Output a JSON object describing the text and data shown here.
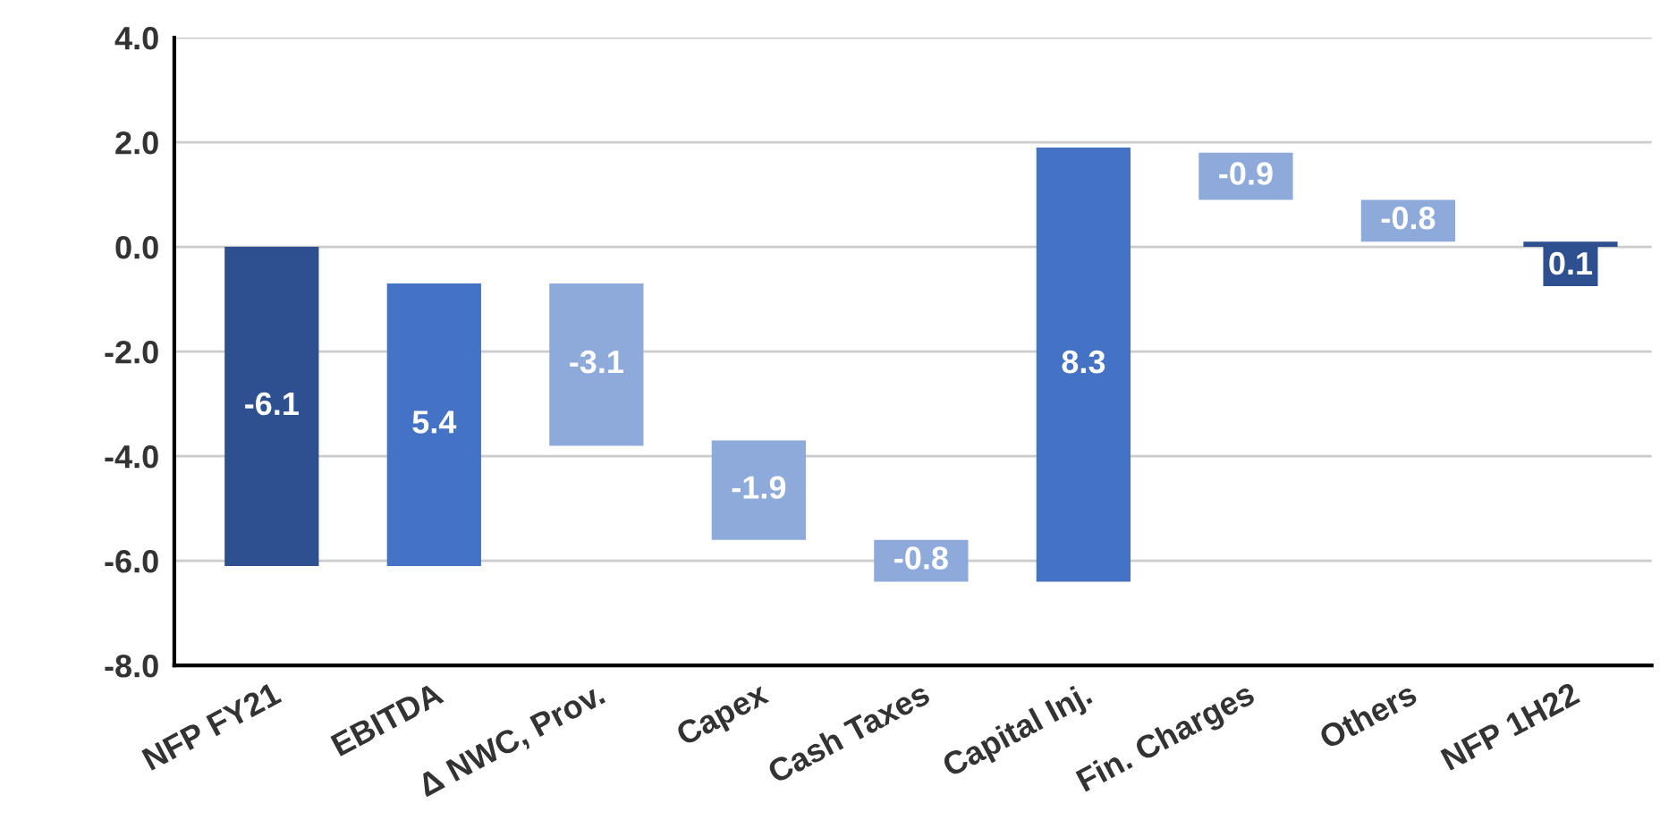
{
  "chart_data": {
    "type": "bar",
    "categories": [
      "NFP FY21",
      "EBITDA",
      "Δ NWC, Prov.",
      "Capex",
      "Cash Taxes",
      "Capital Inj.",
      "Fin. Charges",
      "Others",
      "NFP 1H22"
    ],
    "values": [
      -6.1,
      5.4,
      -3.1,
      -1.9,
      -0.8,
      8.3,
      -0.9,
      -0.8,
      0.1
    ],
    "base": [
      0,
      -6.1,
      -0.7,
      -3.7,
      -5.6,
      -6.4,
      1.8,
      0.9,
      0
    ],
    "colors": [
      "#2e5090",
      "#4472c4",
      "#8eaadb",
      "#8eaadb",
      "#8eaadb",
      "#4472c4",
      "#8eaadb",
      "#8eaadb",
      "#2e5090"
    ],
    "data_labels": true,
    "grid": "y",
    "ylim": [
      -8,
      4
    ],
    "yticks": [
      {
        "value": -8,
        "label": "-8.0"
      },
      {
        "value": -6,
        "label": "-6.0"
      },
      {
        "value": -4,
        "label": "-4.0"
      },
      {
        "value": -2,
        "label": "-2.0"
      },
      {
        "value": 0,
        "label": "0.0"
      },
      {
        "value": 2,
        "label": "2.0"
      },
      {
        "value": 4,
        "label": "4.0"
      }
    ]
  }
}
